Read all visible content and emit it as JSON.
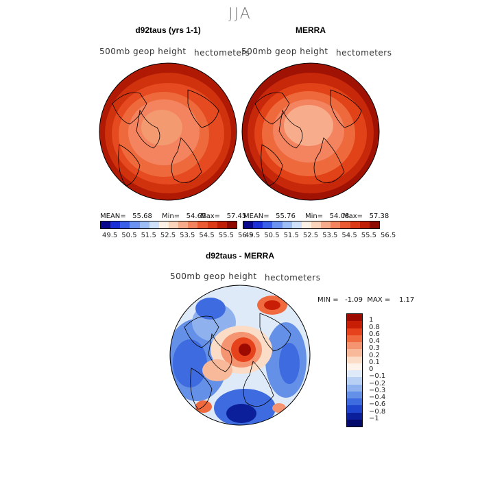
{
  "season": "JJA",
  "panels": [
    {
      "title": "d92taus (yrs 1-1)",
      "variable": "500mb geop height",
      "units": "hectometers",
      "mean": "MEAN=   55.68",
      "min": "Min=   54.65",
      "max": "Max=   57.45"
    },
    {
      "title": "MERRA",
      "variable": "500mb geop height",
      "units": "hectometers",
      "mean": "MEAN=   55.76",
      "min": "Min=   54.08",
      "max": "Max=   57.38"
    }
  ],
  "colorbar_top": {
    "labels": [
      "49.5",
      "50.5",
      "51.5",
      "52.5",
      "53.5",
      "54.5",
      "55.5",
      "56.5"
    ],
    "colors": [
      "#08088c",
      "#1a2fd6",
      "#3a5fe8",
      "#6c93f2",
      "#9ebcf6",
      "#cfe1fa",
      "#fbf1e6",
      "#fad4bb",
      "#f7ac8b",
      "#f3845f",
      "#ec5a34",
      "#dd3a17",
      "#c01e06",
      "#8c0a00"
    ]
  },
  "diff": {
    "title": "d92taus - MERRA",
    "variable": "500mb geop height",
    "units": "hectometers",
    "minmax": "MIN =   -1.09  MAX =    1.17",
    "colorbar_labels": [
      "1",
      "0.8",
      "0.6",
      "0.4",
      "0.3",
      "0.2",
      "0.1",
      "0",
      "−0.1",
      "−0.2",
      "−0.3",
      "−0.4",
      "−0.6",
      "−0.8",
      "−1"
    ],
    "colorbar_colors": [
      "#9c0a00",
      "#c81e06",
      "#e6421b",
      "#f06a40",
      "#f59470",
      "#f8b99a",
      "#fbdcc6",
      "#fdf3ea",
      "#deeaf8",
      "#b7d0f4",
      "#8fb2ef",
      "#6590e8",
      "#3e6bdf",
      "#1f45cf",
      "#0c1f9a",
      "#040a6c"
    ]
  }
}
